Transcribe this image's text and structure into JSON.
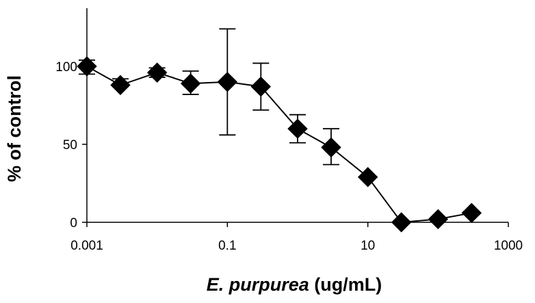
{
  "chart_data": {
    "type": "scatter",
    "x_scale": "log",
    "xlabel_italic": "E. purpurea",
    "xlabel_rest": " (ug/mL)",
    "ylabel": "% of control",
    "xlim": [
      0.001,
      1000
    ],
    "ylim": [
      0,
      135
    ],
    "x_ticks": [
      0.001,
      0.1,
      10,
      1000
    ],
    "x_tick_labels": [
      "0.001",
      "0.1",
      "10",
      "1000"
    ],
    "y_ticks": [
      0,
      50,
      100
    ],
    "y_tick_labels": [
      "0",
      "50",
      "100"
    ],
    "grid": false,
    "legend": "none",
    "marker": "diamond",
    "color": "#000000",
    "series": [
      {
        "points": [
          {
            "x": 0.001,
            "y": 100,
            "err_low": 95,
            "err_high": 104
          },
          {
            "x": 0.003,
            "y": 88,
            "err_low": 87,
            "err_high": 92
          },
          {
            "x": 0.01,
            "y": 96,
            "err_low": 93,
            "err_high": 99
          },
          {
            "x": 0.03,
            "y": 89,
            "err_low": 82,
            "err_high": 97
          },
          {
            "x": 0.1,
            "y": 90,
            "err_low": 56,
            "err_high": 124
          },
          {
            "x": 0.3,
            "y": 87,
            "err_low": 72,
            "err_high": 102
          },
          {
            "x": 1,
            "y": 60,
            "err_low": 51,
            "err_high": 69
          },
          {
            "x": 3,
            "y": 48,
            "err_low": 37,
            "err_high": 60
          },
          {
            "x": 10,
            "y": 29,
            "err_low": 29,
            "err_high": 29
          },
          {
            "x": 30,
            "y": 0,
            "err_low": 0,
            "err_high": 0
          },
          {
            "x": 100,
            "y": 2,
            "err_low": 2,
            "err_high": 2
          },
          {
            "x": 300,
            "y": 6,
            "err_low": 5,
            "err_high": 7
          }
        ]
      }
    ]
  }
}
